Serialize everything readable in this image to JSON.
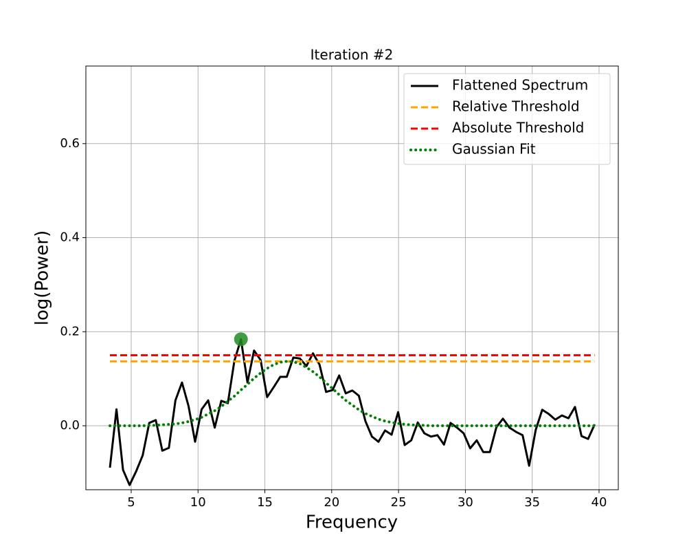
{
  "chart_data": {
    "type": "line",
    "title": "Iteration #2",
    "xlabel": "Frequency",
    "ylabel": "log(Power)",
    "x": [
      3.41,
      3.9,
      4.39,
      4.88,
      5.37,
      5.86,
      6.35,
      6.84,
      7.33,
      7.82,
      8.31,
      8.8,
      9.29,
      9.78,
      10.27,
      10.76,
      11.25,
      11.74,
      12.23,
      12.72,
      13.21,
      13.7,
      14.19,
      14.68,
      15.17,
      15.66,
      16.15,
      16.64,
      17.13,
      17.62,
      18.11,
      18.6,
      19.09,
      19.58,
      20.07,
      20.56,
      21.05,
      21.54,
      22.03,
      22.52,
      23.01,
      23.5,
      23.99,
      24.48,
      24.97,
      25.46,
      25.95,
      26.44,
      26.93,
      27.42,
      27.91,
      28.4,
      28.89,
      29.38,
      29.87,
      30.36,
      30.85,
      31.34,
      31.83,
      32.32,
      32.81,
      33.3,
      33.79,
      34.28,
      34.77,
      35.26,
      35.75,
      36.24,
      36.73,
      37.22,
      37.71,
      38.2,
      38.69,
      39.18,
      39.67
    ],
    "series": [
      {
        "name": "Flattened Spectrum",
        "color": "#000000",
        "style": "solid",
        "values": [
          -0.089,
          0.035,
          -0.094,
          -0.126,
          -0.097,
          -0.063,
          0.006,
          0.012,
          -0.053,
          -0.047,
          0.054,
          0.092,
          0.042,
          -0.034,
          0.035,
          0.054,
          -0.004,
          0.053,
          0.048,
          0.138,
          0.184,
          0.092,
          0.16,
          0.14,
          0.061,
          0.082,
          0.104,
          0.104,
          0.145,
          0.143,
          0.127,
          0.154,
          0.13,
          0.072,
          0.076,
          0.107,
          0.069,
          0.075,
          0.064,
          0.01,
          -0.023,
          -0.034,
          -0.01,
          -0.019,
          0.029,
          -0.041,
          -0.031,
          0.007,
          -0.016,
          -0.023,
          -0.02,
          -0.04,
          0.006,
          -0.004,
          -0.016,
          -0.048,
          -0.031,
          -0.056,
          -0.056,
          -0.003,
          0.015,
          -0.004,
          -0.013,
          -0.02,
          -0.085,
          -0.009,
          0.034,
          0.025,
          0.013,
          0.022,
          0.016,
          0.04,
          -0.022,
          -0.028,
          0.003
        ]
      },
      {
        "name": "Relative Threshold",
        "color": "#ffa500",
        "style": "dashed",
        "x": [
          3.41,
          39.67
        ],
        "values": [
          0.137,
          0.137
        ]
      },
      {
        "name": "Absolute Threshold",
        "color": "#ff0000",
        "style": "dashed",
        "x": [
          3.41,
          39.67
        ],
        "values": [
          0.15,
          0.15
        ]
      },
      {
        "name": "Gaussian Fit",
        "color": "#008000",
        "style": "dotted",
        "values": [
          0,
          0,
          0,
          0,
          0,
          0,
          0.001,
          0.001,
          0.002,
          0.003,
          0.004,
          0.006,
          0.009,
          0.013,
          0.018,
          0.025,
          0.032,
          0.041,
          0.052,
          0.063,
          0.076,
          0.088,
          0.101,
          0.112,
          0.122,
          0.13,
          0.135,
          0.137,
          0.136,
          0.132,
          0.124,
          0.115,
          0.104,
          0.091,
          0.079,
          0.066,
          0.054,
          0.044,
          0.034,
          0.026,
          0.02,
          0.014,
          0.01,
          0.007,
          0.005,
          0.003,
          0.002,
          0.001,
          0.001,
          0,
          0,
          0,
          0,
          0,
          0,
          0,
          0,
          0,
          0,
          0,
          0,
          0,
          0,
          0,
          0,
          0,
          0,
          0,
          0,
          0,
          0,
          0,
          0,
          0,
          0
        ]
      }
    ],
    "peak": {
      "x": 13.21,
      "y": 0.184,
      "color": "#228b22"
    },
    "xlim": [
      1.61,
      41.44
    ],
    "ylim": [
      -0.136,
      0.765
    ],
    "xticks": [
      5,
      10,
      15,
      20,
      25,
      30,
      35,
      40
    ],
    "yticks": [
      {
        "value": 0,
        "label": "0.0"
      },
      0.2,
      0.4,
      0.6
    ],
    "grid": true,
    "legend": "upper right"
  }
}
